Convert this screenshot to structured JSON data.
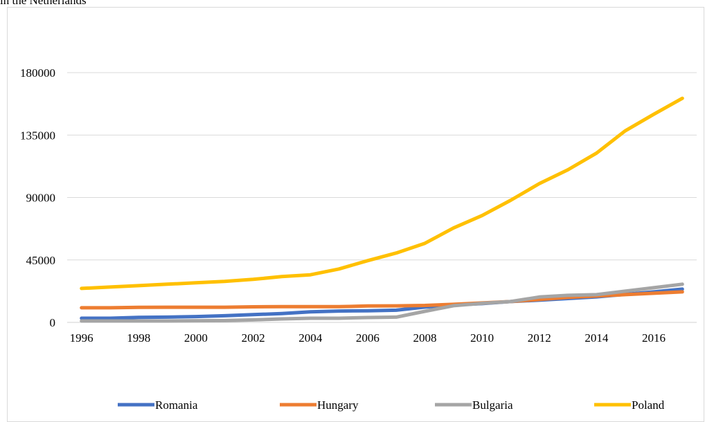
{
  "caption": "in the Netherlands",
  "chart_data": {
    "type": "line",
    "x": [
      1996,
      1997,
      1998,
      1999,
      2000,
      2001,
      2002,
      2003,
      2004,
      2005,
      2006,
      2007,
      2008,
      2009,
      2010,
      2011,
      2012,
      2013,
      2014,
      2015,
      2016,
      2017
    ],
    "x_ticks": [
      "1996",
      "1998",
      "2000",
      "2002",
      "2004",
      "2006",
      "2008",
      "2010",
      "2012",
      "2014",
      "2016"
    ],
    "ylim": [
      0,
      180000
    ],
    "y_ticks": [
      "0",
      "45000",
      "90000",
      "135000",
      "180000"
    ],
    "grid": true,
    "legend_position": "bottom",
    "series": [
      {
        "name": "Romania",
        "color": "#4472c4",
        "values": [
          3000,
          3000,
          3600,
          3800,
          4200,
          4800,
          5600,
          6400,
          7600,
          8200,
          8400,
          8800,
          11000,
          12500,
          13500,
          15000,
          16000,
          17200,
          18400,
          20200,
          22000,
          24000
        ]
      },
      {
        "name": "Hungary",
        "color": "#ed7d31",
        "values": [
          10500,
          10500,
          10800,
          10900,
          10900,
          10900,
          11200,
          11300,
          11300,
          11300,
          11800,
          11900,
          12200,
          13000,
          14000,
          15000,
          16500,
          18000,
          19000,
          20000,
          21000,
          22000
        ]
      },
      {
        "name": "Bulgaria",
        "color": "#a5a5a5",
        "values": [
          1000,
          1000,
          1000,
          1000,
          1200,
          1300,
          1800,
          2500,
          3000,
          3000,
          3500,
          3800,
          8000,
          12000,
          13700,
          15000,
          18300,
          19500,
          20000,
          22500,
          25000,
          27500
        ]
      },
      {
        "name": "Poland",
        "color": "#ffc000",
        "values": [
          24500,
          25500,
          26500,
          27500,
          28500,
          29500,
          31000,
          33000,
          34300,
          38500,
          44500,
          50000,
          57000,
          68000,
          77000,
          88000,
          100000,
          110000,
          122000,
          138000,
          150000,
          161500
        ]
      }
    ]
  }
}
